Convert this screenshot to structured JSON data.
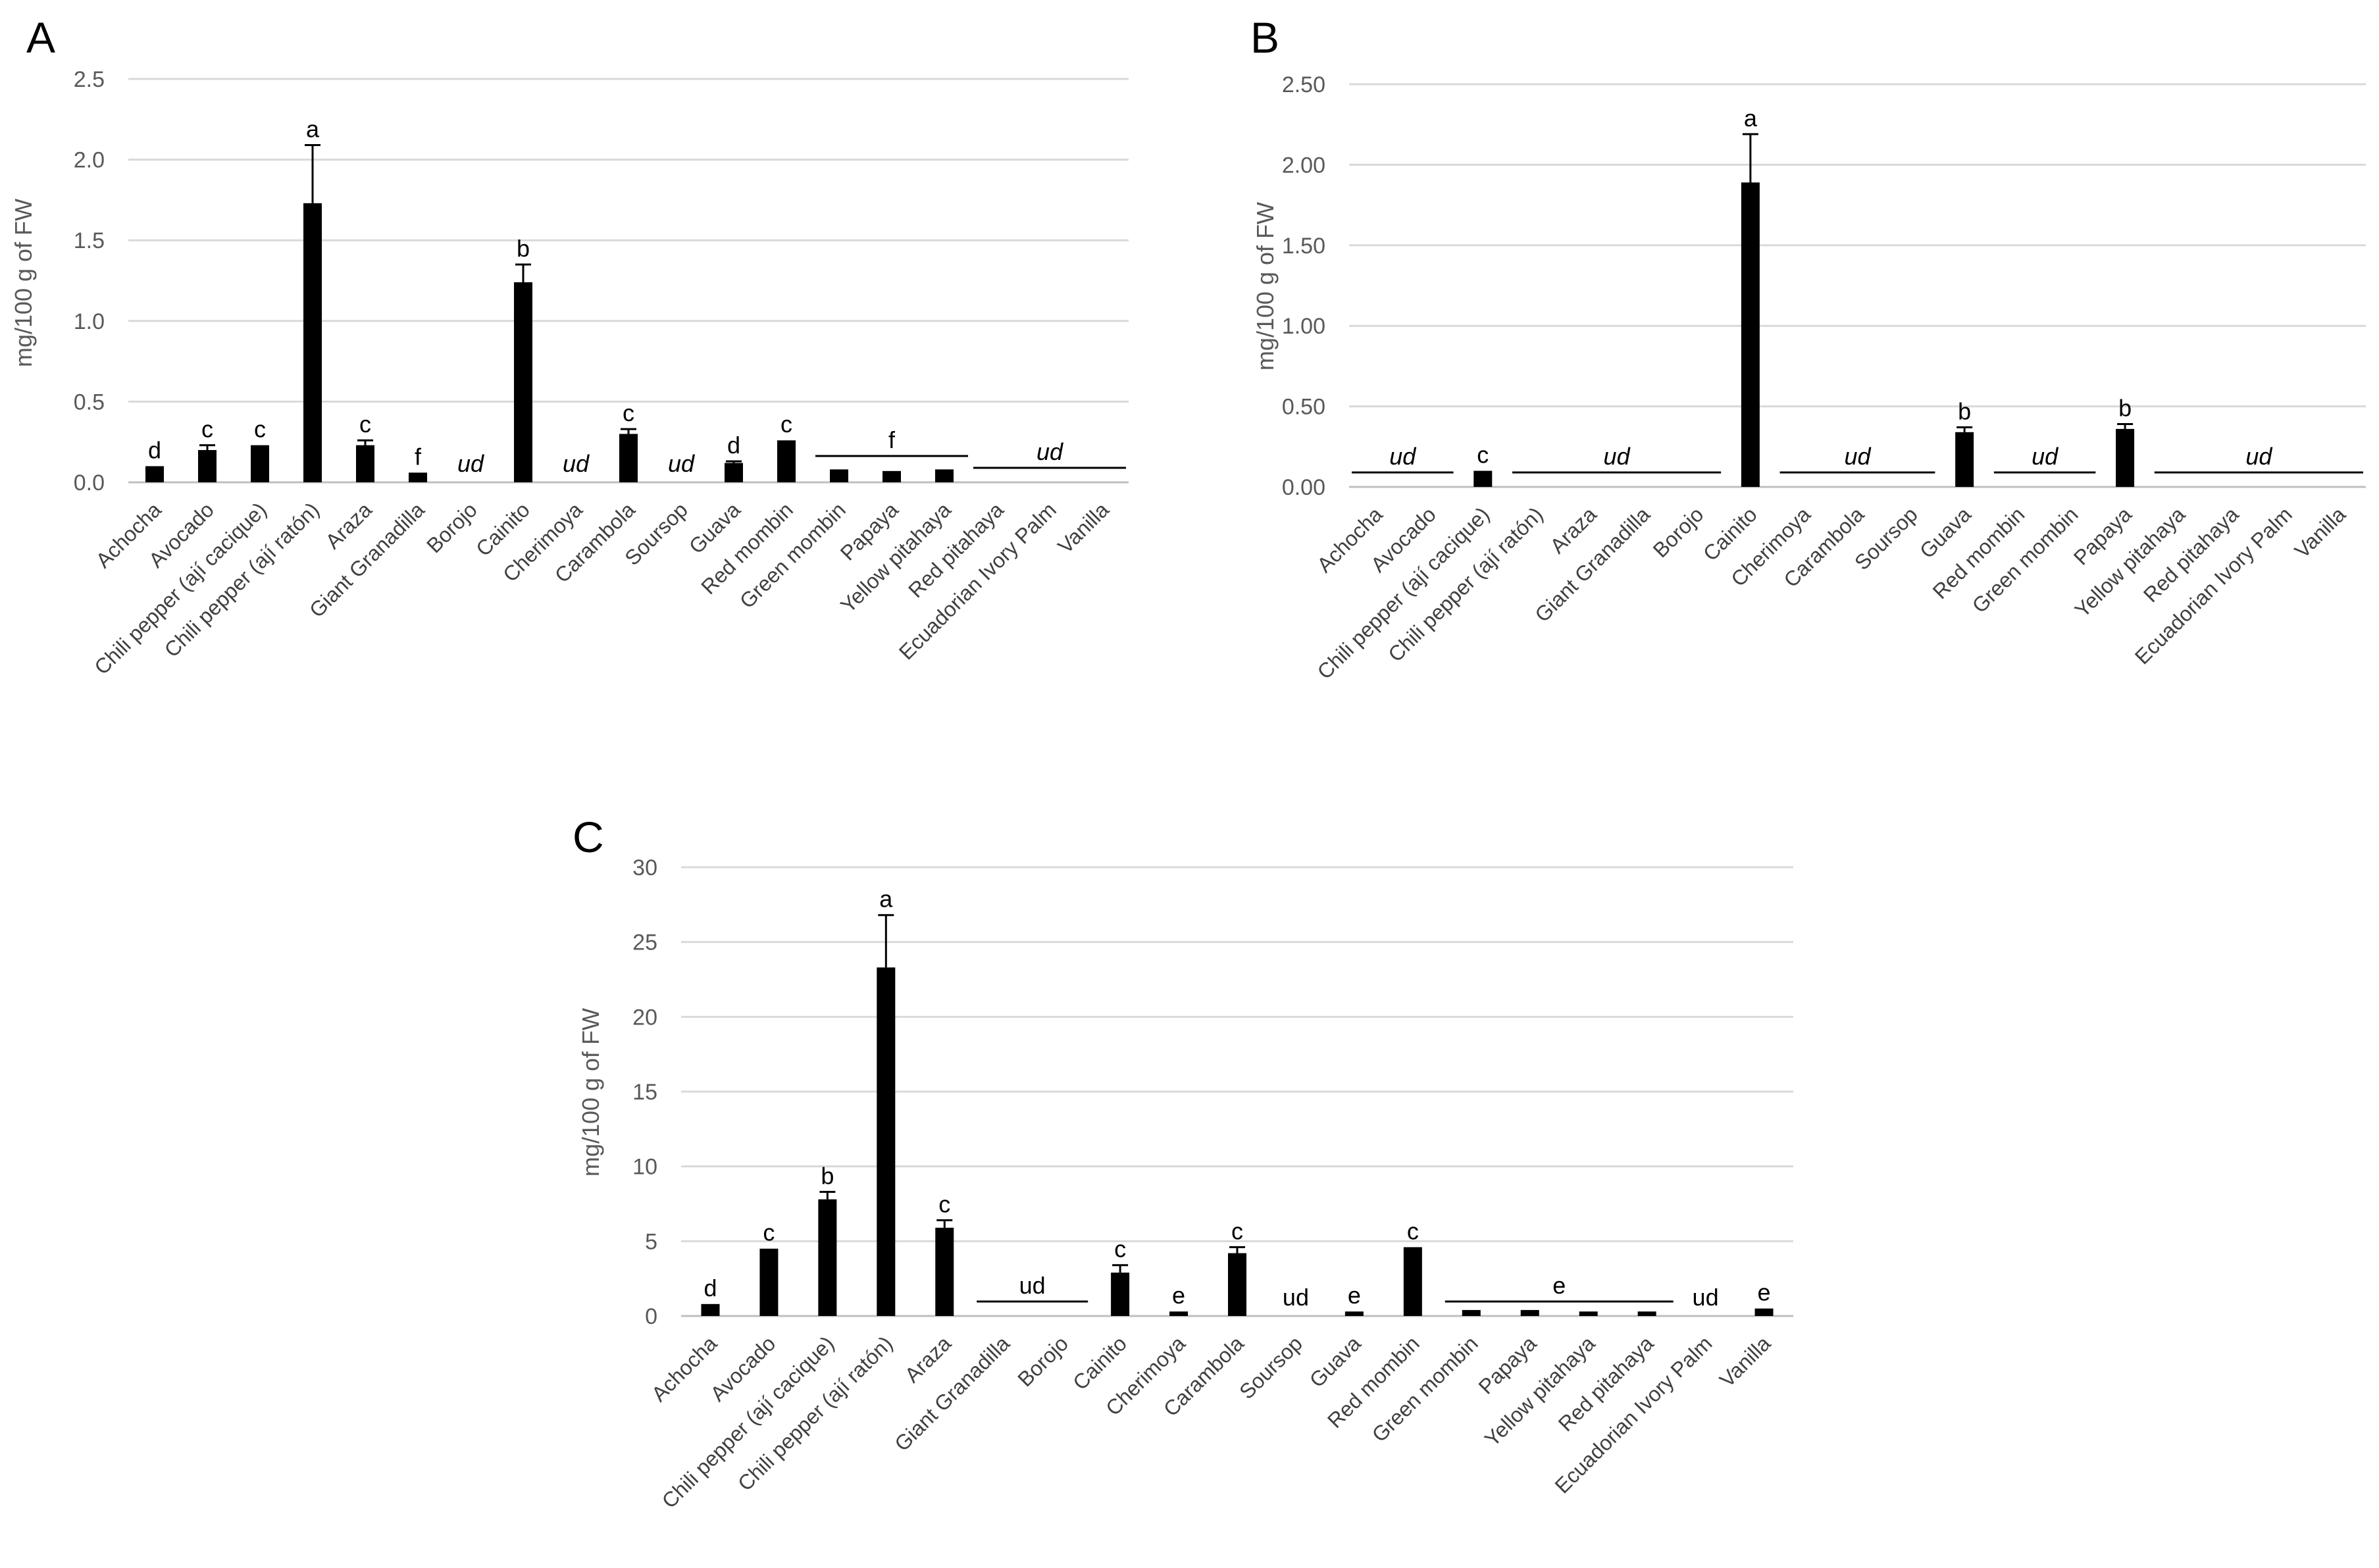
{
  "chart_data": [
    {
      "panel": "A",
      "type": "bar",
      "ylabel": "mg/100 g of FW",
      "ylim": [
        0,
        2.5
      ],
      "yticks": [
        "0.0",
        "0.5",
        "1.0",
        "1.5",
        "2.0",
        "2.5"
      ],
      "categories": [
        "Achocha",
        "Avocado",
        "Chili pepper (ají cacique)",
        "Chili pepper (ají ratón)",
        "Araza",
        "Giant Granadilla",
        "Borojo",
        "Cainito",
        "Cherimoya",
        "Carambola",
        "Soursop",
        "Guava",
        "Red mombin",
        "Green mombin",
        "Papaya",
        "Yellow pitahaya",
        "Red pitahaya",
        "Ecuadorian Ivory Palm",
        "Vanilla"
      ],
      "values": [
        0.1,
        0.2,
        0.23,
        1.73,
        0.23,
        0.06,
        null,
        1.24,
        null,
        0.3,
        null,
        0.12,
        0.26,
        0.08,
        0.07,
        0.08,
        null,
        null,
        null
      ],
      "errors": [
        0,
        0.03,
        0,
        0.36,
        0.03,
        0,
        null,
        0.11,
        null,
        0.03,
        null,
        0.01,
        0,
        0,
        0,
        0,
        null,
        null,
        null
      ],
      "labels": [
        "d",
        "c",
        "c",
        "a",
        "c",
        "f",
        "ud",
        "b",
        "ud",
        "c",
        "ud",
        "d",
        "c",
        "",
        "",
        "",
        "",
        "",
        ""
      ],
      "groups": [
        {
          "from": 13,
          "to": 15,
          "label": "f"
        },
        {
          "from": 16,
          "to": 18,
          "label": "ud"
        }
      ]
    },
    {
      "panel": "B",
      "type": "bar",
      "ylabel": "mg/100 g of FW",
      "ylim": [
        0,
        2.5
      ],
      "yticks": [
        "0.00",
        "0.50",
        "1.00",
        "1.50",
        "2.00",
        "2.50"
      ],
      "categories": [
        "Achocha",
        "Avocado",
        "Chili pepper (ají cacique)",
        "Chili pepper (ají ratón)",
        "Araza",
        "Giant Granadilla",
        "Borojo",
        "Cainito",
        "Cherimoya",
        "Carambola",
        "Soursop",
        "Guava",
        "Red mombin",
        "Green mombin",
        "Papaya",
        "Yellow pitahaya",
        "Red pitahaya",
        "Ecuadorian Ivory Palm",
        "Vanilla"
      ],
      "values": [
        null,
        null,
        0.1,
        null,
        null,
        null,
        null,
        1.89,
        null,
        null,
        null,
        0.34,
        null,
        null,
        0.36,
        null,
        null,
        null,
        null
      ],
      "errors": [
        null,
        null,
        0,
        null,
        null,
        null,
        null,
        0.3,
        null,
        null,
        null,
        0.03,
        null,
        null,
        0.03,
        null,
        null,
        null,
        null
      ],
      "labels": [
        "",
        "",
        "c",
        "",
        "",
        "",
        "",
        "a",
        "",
        "",
        "",
        "b",
        "",
        "",
        "b",
        "",
        "",
        "",
        ""
      ],
      "groups": [
        {
          "from": 0,
          "to": 1,
          "label": "ud"
        },
        {
          "from": 3,
          "to": 6,
          "label": "ud"
        },
        {
          "from": 8,
          "to": 10,
          "label": "ud"
        },
        {
          "from": 12,
          "to": 13,
          "label": "ud"
        },
        {
          "from": 15,
          "to": 18,
          "label": "ud"
        }
      ]
    },
    {
      "panel": "C",
      "type": "bar",
      "ylabel": "mg/100 g of FW",
      "ylim": [
        0,
        30
      ],
      "yticks": [
        "0",
        "5",
        "10",
        "15",
        "20",
        "25",
        "30"
      ],
      "categories": [
        "Achocha",
        "Avocado",
        "Chili pepper (ají cacique)",
        "Chili pepper (ají ratón)",
        "Araza",
        "Giant Granadilla",
        "Borojo",
        "Cainito",
        "Cherimoya",
        "Carambola",
        "Soursop",
        "Guava",
        "Red mombin",
        "Green mombin",
        "Papaya",
        "Yellow pitahaya",
        "Red pitahaya",
        "Ecuadorian Ivory Palm",
        "Vanilla"
      ],
      "values": [
        0.8,
        4.5,
        7.8,
        23.3,
        5.9,
        null,
        null,
        2.9,
        0.3,
        4.2,
        null,
        0.3,
        4.6,
        0.4,
        0.4,
        0.3,
        0.3,
        null,
        0.5
      ],
      "errors": [
        0,
        0,
        0.5,
        3.5,
        0.5,
        null,
        null,
        0.5,
        0,
        0.4,
        null,
        0,
        0,
        0,
        0,
        0,
        0,
        null,
        0
      ],
      "labels": [
        "d",
        "c",
        "b",
        "a",
        "c",
        "",
        "",
        "c",
        "e",
        "c",
        "ud",
        "e",
        "c",
        "",
        "",
        "",
        "",
        "ud",
        "e"
      ],
      "groups": [
        {
          "from": 5,
          "to": 6,
          "label": "ud"
        },
        {
          "from": 13,
          "to": 16,
          "label": "e"
        }
      ]
    }
  ]
}
